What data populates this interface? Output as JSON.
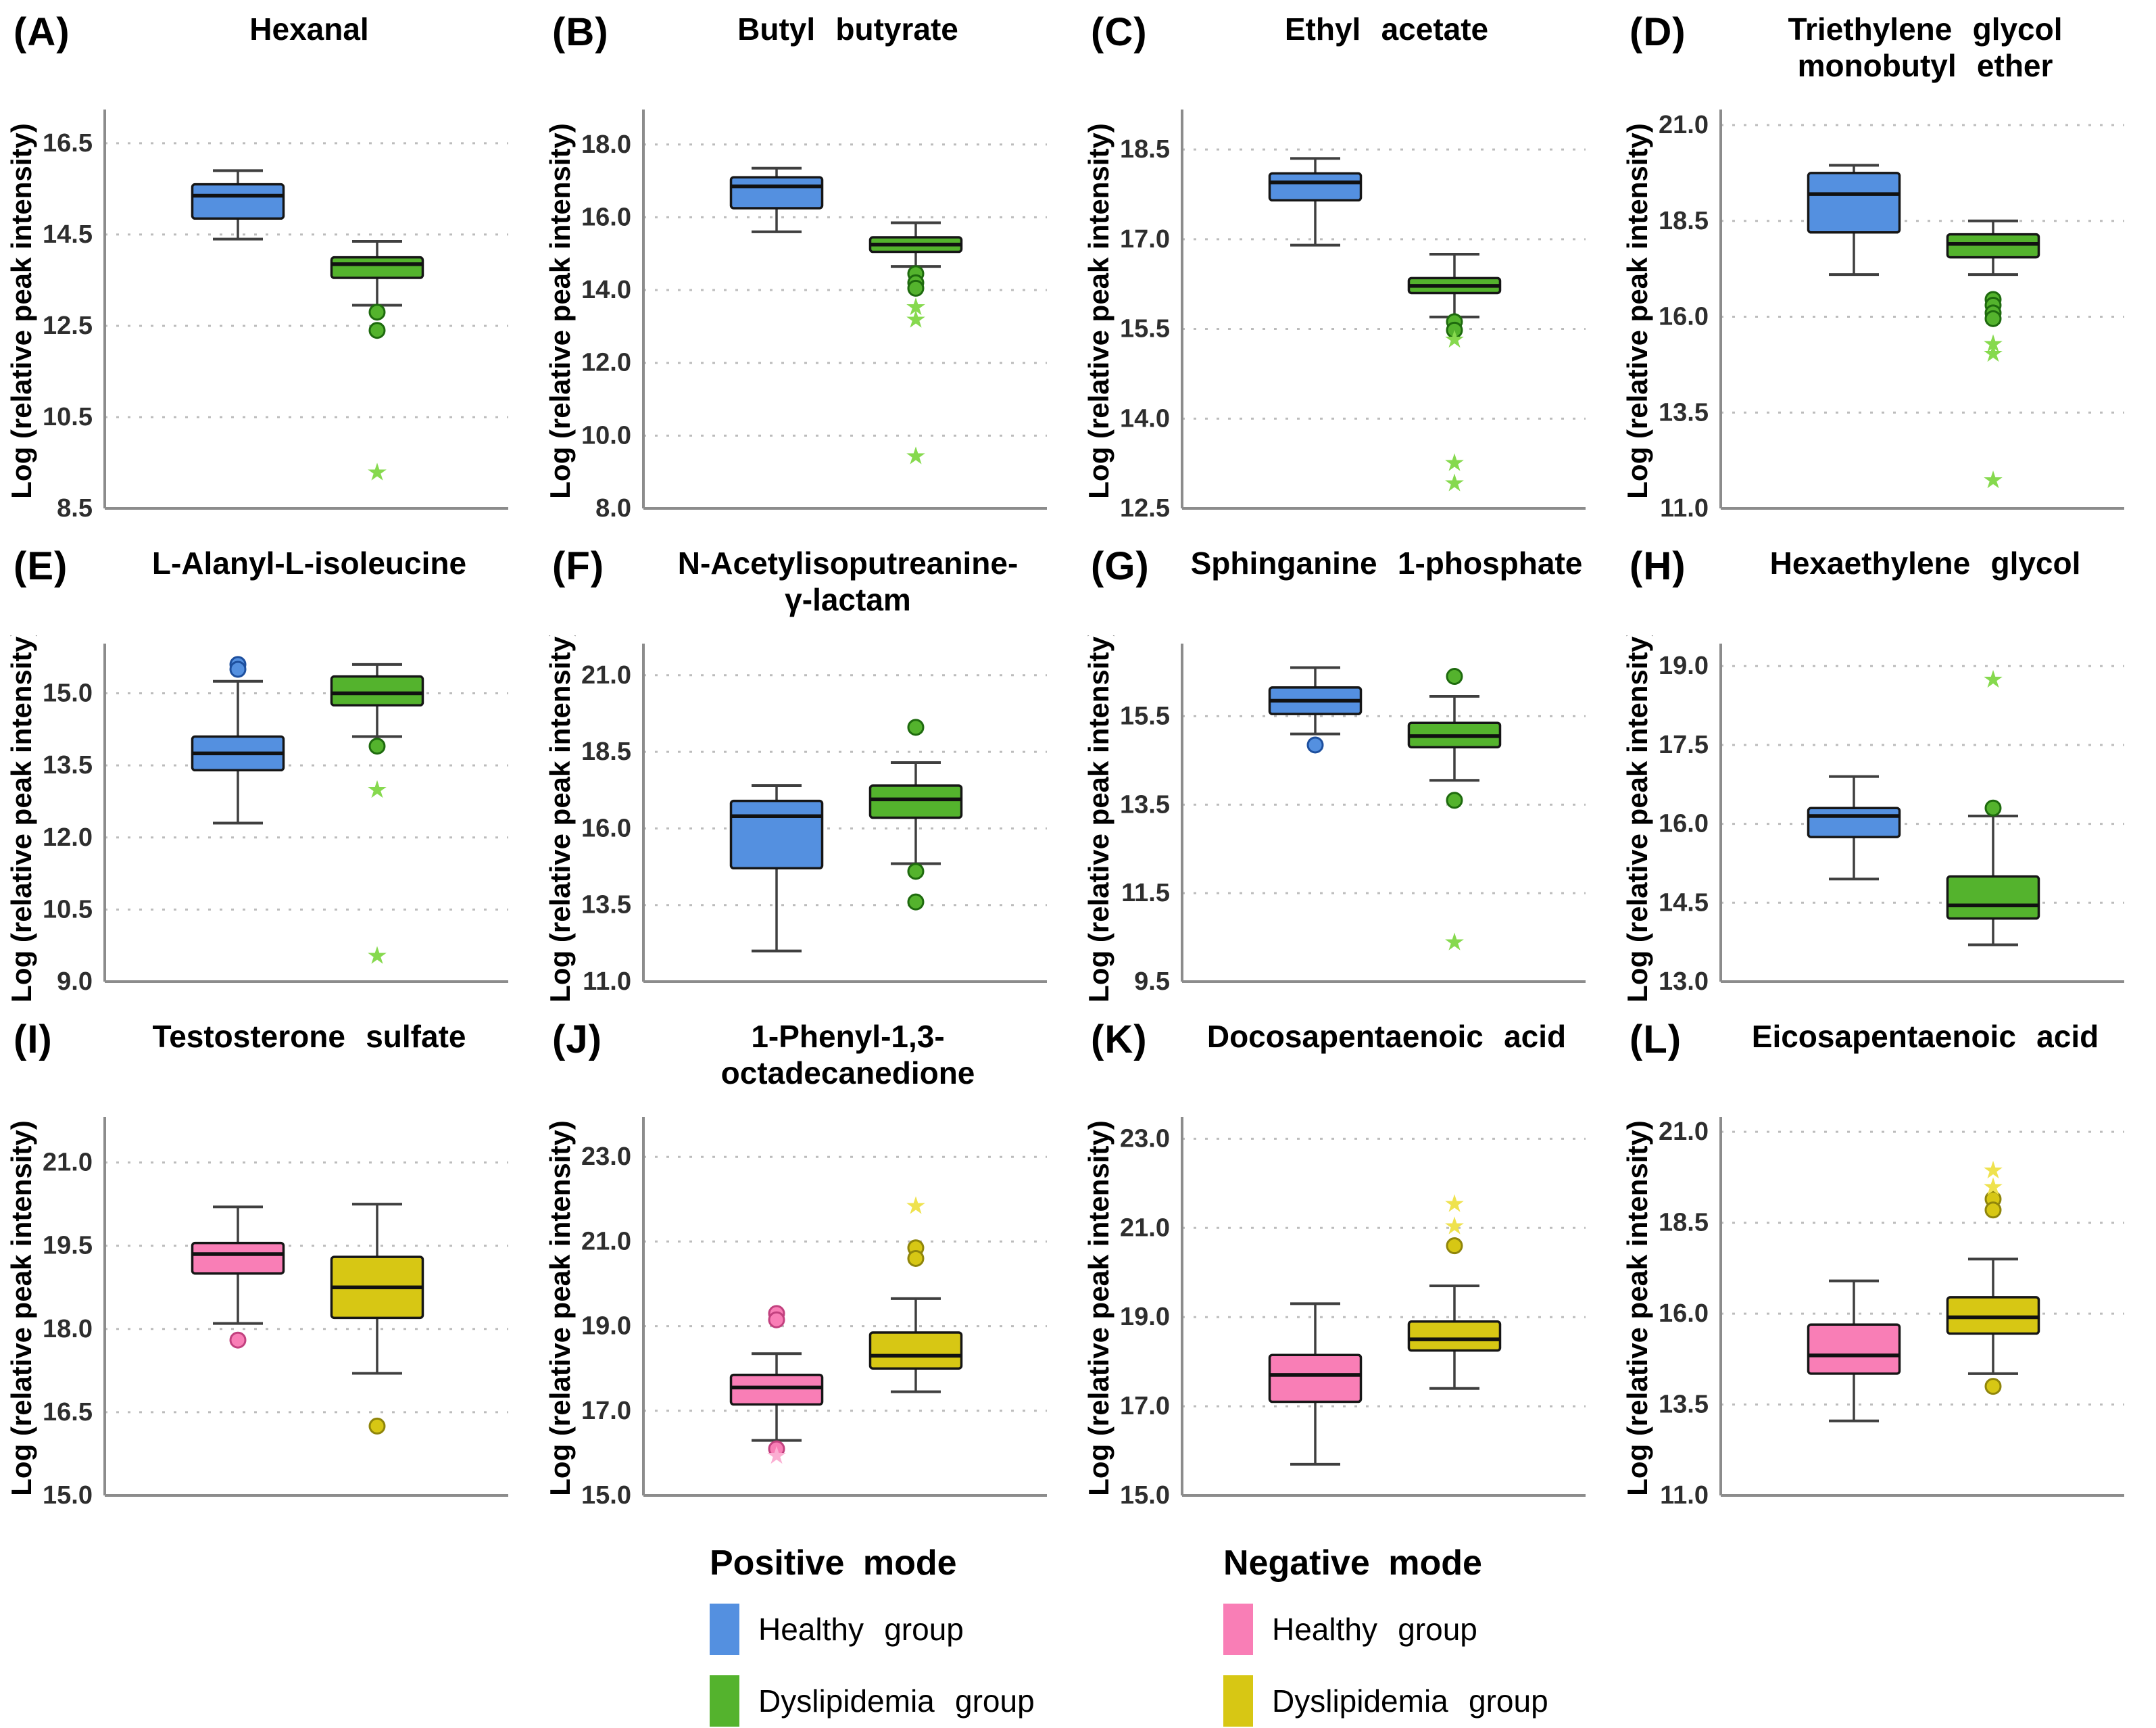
{
  "figure": {
    "ylabel": "Log (relative peak intensity)"
  },
  "legend": {
    "sections": [
      {
        "title": "Positive mode",
        "items": [
          {
            "label": "Healthy group",
            "color": "#5490e0"
          },
          {
            "label": "Dyslipidemia group",
            "color": "#54b32d"
          }
        ]
      },
      {
        "title": "Negative mode",
        "items": [
          {
            "label": "Healthy group",
            "color": "#f97eb6"
          },
          {
            "label": "Dyslipidemia group",
            "color": "#d7c714"
          }
        ]
      }
    ]
  },
  "chart_data": [
    {
      "type": "boxplot",
      "panel": "(A)",
      "title_lines": [
        "Hexanal"
      ],
      "ylabel": "Log (relative peak intensity)",
      "yticks": [
        8.5,
        10.5,
        12.5,
        14.5,
        16.5
      ],
      "ylim": [
        8.5,
        17.15
      ],
      "groups": [
        {
          "name": "Healthy group",
          "fill": "#5490e0",
          "edge": "#1d4f9e",
          "star": "#7fd74f",
          "box": {
            "low": 14.4,
            "q1": 14.85,
            "median": 15.35,
            "q3": 15.6,
            "high": 15.9
          },
          "circles": [],
          "stars": []
        },
        {
          "name": "Dyslipidemia group",
          "fill": "#54b32d",
          "edge": "#1e6a0e",
          "star": "#86d94e",
          "box": {
            "low": 12.95,
            "q1": 13.55,
            "median": 13.85,
            "q3": 14.0,
            "high": 14.35
          },
          "circles": [
            12.8,
            12.4
          ],
          "stars": [
            9.3
          ]
        }
      ]
    },
    {
      "type": "boxplot",
      "panel": "(B)",
      "title_lines": [
        "Butyl butyrate"
      ],
      "ylabel": "Log (relative peak intensity)",
      "yticks": [
        8.0,
        10.0,
        12.0,
        14.0,
        16.0,
        18.0
      ],
      "ylim": [
        8.0,
        18.85
      ],
      "groups": [
        {
          "name": "Healthy group",
          "fill": "#5490e0",
          "edge": "#1d4f9e",
          "star": "#7fd74f",
          "box": {
            "low": 15.6,
            "q1": 16.25,
            "median": 16.85,
            "q3": 17.1,
            "high": 17.35
          },
          "circles": [],
          "stars": []
        },
        {
          "name": "Dyslipidemia group",
          "fill": "#54b32d",
          "edge": "#1e6a0e",
          "star": "#86d94e",
          "box": {
            "low": 14.65,
            "q1": 15.05,
            "median": 15.25,
            "q3": 15.45,
            "high": 15.85
          },
          "circles": [
            14.45,
            14.2,
            14.05
          ],
          "stars": [
            13.55,
            13.2,
            9.45
          ]
        }
      ]
    },
    {
      "type": "boxplot",
      "panel": "(C)",
      "title_lines": [
        "Ethyl acetate"
      ],
      "ylabel": "Log (relative peak intensity)",
      "yticks": [
        12.5,
        14.0,
        15.5,
        17.0,
        18.5
      ],
      "ylim": [
        12.5,
        19.1
      ],
      "groups": [
        {
          "name": "Healthy group",
          "fill": "#5490e0",
          "edge": "#1d4f9e",
          "star": "#7fd74f",
          "box": {
            "low": 16.9,
            "q1": 17.65,
            "median": 17.95,
            "q3": 18.1,
            "high": 18.35
          },
          "circles": [],
          "stars": []
        },
        {
          "name": "Dyslipidemia group",
          "fill": "#54b32d",
          "edge": "#1e6a0e",
          "star": "#86d94e",
          "box": {
            "low": 15.7,
            "q1": 16.1,
            "median": 16.22,
            "q3": 16.35,
            "high": 16.75
          },
          "circles": [
            15.62,
            15.48
          ],
          "stars": [
            15.33,
            13.27,
            12.93
          ]
        }
      ]
    },
    {
      "type": "boxplot",
      "panel": "(D)",
      "title_lines": [
        "Triethylene glycol",
        "monobutyl ether"
      ],
      "ylabel": "Log (relative peak intensity)",
      "yticks": [
        11.0,
        13.5,
        16.0,
        18.5,
        21.0
      ],
      "ylim": [
        11.0,
        21.3
      ],
      "groups": [
        {
          "name": "Healthy group",
          "fill": "#5490e0",
          "edge": "#1d4f9e",
          "star": "#7fd74f",
          "box": {
            "low": 17.1,
            "q1": 18.2,
            "median": 19.2,
            "q3": 19.75,
            "high": 19.95
          },
          "circles": [],
          "stars": []
        },
        {
          "name": "Dyslipidemia group",
          "fill": "#54b32d",
          "edge": "#1e6a0e",
          "star": "#86d94e",
          "box": {
            "low": 17.1,
            "q1": 17.55,
            "median": 17.9,
            "q3": 18.15,
            "high": 18.5
          },
          "circles": [
            16.45,
            16.3,
            16.1,
            15.95
          ],
          "stars": [
            15.3,
            15.05,
            11.75
          ]
        }
      ]
    },
    {
      "type": "boxplot",
      "panel": "(E)",
      "title_lines": [
        "L-Alanyl-L-isoleucine"
      ],
      "ylabel": "Log (relative peak intensity)",
      "yticks": [
        9.0,
        10.5,
        12.0,
        13.5,
        15.0
      ],
      "ylim": [
        9.0,
        15.95
      ],
      "groups": [
        {
          "name": "Healthy group",
          "fill": "#5490e0",
          "edge": "#1d4f9e",
          "star": "#7fd74f",
          "box": {
            "low": 12.3,
            "q1": 13.4,
            "median": 13.75,
            "q3": 14.1,
            "high": 15.25
          },
          "circles": [
            15.6,
            15.5
          ],
          "stars": []
        },
        {
          "name": "Dyslipidemia group",
          "fill": "#54b32d",
          "edge": "#1e6a0e",
          "star": "#86d94e",
          "box": {
            "low": 14.1,
            "q1": 14.75,
            "median": 15.0,
            "q3": 15.35,
            "high": 15.6
          },
          "circles": [
            13.9
          ],
          "stars": [
            13.0,
            9.55
          ]
        }
      ]
    },
    {
      "type": "boxplot",
      "panel": "(F)",
      "title_lines": [
        "N-Acetylisoputreanine-",
        "γ-lactam"
      ],
      "ylabel": "Log (relative peak intensity)",
      "yticks": [
        11.0,
        13.5,
        16.0,
        18.5,
        21.0
      ],
      "ylim": [
        11.0,
        21.9
      ],
      "groups": [
        {
          "name": "Healthy group",
          "fill": "#5490e0",
          "edge": "#1d4f9e",
          "star": "#7fd74f",
          "box": {
            "low": 12.0,
            "q1": 14.7,
            "median": 16.4,
            "q3": 16.9,
            "high": 17.4
          },
          "circles": [],
          "stars": []
        },
        {
          "name": "Dyslipidemia group",
          "fill": "#54b32d",
          "edge": "#1e6a0e",
          "star": "#86d94e",
          "box": {
            "low": 14.85,
            "q1": 16.35,
            "median": 16.95,
            "q3": 17.4,
            "high": 18.15
          },
          "circles": [
            19.3,
            14.6,
            13.6
          ],
          "stars": []
        }
      ]
    },
    {
      "type": "boxplot",
      "panel": "(G)",
      "title_lines": [
        "Sphinganine 1-phosphate"
      ],
      "ylabel": "Log (relative peak intensity)",
      "yticks": [
        9.5,
        11.5,
        13.5,
        15.5
      ],
      "ylim": [
        9.5,
        17.05
      ],
      "groups": [
        {
          "name": "Healthy group",
          "fill": "#5490e0",
          "edge": "#1d4f9e",
          "star": "#7fd74f",
          "box": {
            "low": 15.1,
            "q1": 15.55,
            "median": 15.85,
            "q3": 16.15,
            "high": 16.6
          },
          "circles": [
            14.85
          ],
          "stars": []
        },
        {
          "name": "Dyslipidemia group",
          "fill": "#54b32d",
          "edge": "#1e6a0e",
          "star": "#86d94e",
          "box": {
            "low": 14.05,
            "q1": 14.8,
            "median": 15.05,
            "q3": 15.35,
            "high": 15.95
          },
          "circles": [
            16.4,
            13.6
          ],
          "stars": [
            10.4
          ]
        }
      ]
    },
    {
      "type": "boxplot",
      "panel": "(H)",
      "title_lines": [
        "Hexaethylene glycol"
      ],
      "ylabel": "Log (relative peak intensity)",
      "yticks": [
        13.0,
        14.5,
        16.0,
        17.5,
        19.0
      ],
      "ylim": [
        13.0,
        19.35
      ],
      "groups": [
        {
          "name": "Healthy group",
          "fill": "#5490e0",
          "edge": "#1d4f9e",
          "star": "#7fd74f",
          "box": {
            "low": 14.95,
            "q1": 15.75,
            "median": 16.15,
            "q3": 16.3,
            "high": 16.9
          },
          "circles": [],
          "stars": []
        },
        {
          "name": "Dyslipidemia group",
          "fill": "#54b32d",
          "edge": "#1e6a0e",
          "star": "#86d94e",
          "box": {
            "low": 13.7,
            "q1": 14.2,
            "median": 14.45,
            "q3": 15.0,
            "high": 16.15
          },
          "circles": [
            16.3
          ],
          "stars": [
            18.75
          ]
        }
      ]
    },
    {
      "type": "boxplot",
      "panel": "(I)",
      "title_lines": [
        "Testosterone sulfate"
      ],
      "ylabel": "Log (relative peak intensity)",
      "yticks": [
        15.0,
        16.5,
        18.0,
        19.5,
        21.0
      ],
      "ylim": [
        15.0,
        21.75
      ],
      "groups": [
        {
          "name": "Healthy group",
          "fill": "#f97eb6",
          "edge": "#c2417f",
          "star": "#fbaed2",
          "box": {
            "low": 18.1,
            "q1": 19.0,
            "median": 19.35,
            "q3": 19.55,
            "high": 20.2
          },
          "circles": [
            17.8
          ],
          "stars": []
        },
        {
          "name": "Dyslipidemia group",
          "fill": "#d7c714",
          "edge": "#8f850b",
          "star": "#efe24e",
          "box": {
            "low": 17.2,
            "q1": 18.2,
            "median": 18.75,
            "q3": 19.3,
            "high": 20.25
          },
          "circles": [
            16.25
          ],
          "stars": []
        }
      ]
    },
    {
      "type": "boxplot",
      "panel": "(J)",
      "title_lines": [
        "1-Phenyl-1,3-",
        "octadecanedione"
      ],
      "ylabel": "Log (relative peak intensity)",
      "yticks": [
        15.0,
        17.0,
        19.0,
        21.0,
        23.0
      ],
      "ylim": [
        15.0,
        23.85
      ],
      "groups": [
        {
          "name": "Healthy group",
          "fill": "#f97eb6",
          "edge": "#c2417f",
          "star": "#fbaed2",
          "box": {
            "low": 16.3,
            "q1": 17.15,
            "median": 17.55,
            "q3": 17.85,
            "high": 18.35
          },
          "circles": [
            19.3,
            19.15,
            16.1
          ],
          "stars": [
            15.95
          ]
        },
        {
          "name": "Dyslipidemia group",
          "fill": "#d7c714",
          "edge": "#8f850b",
          "star": "#efe24e",
          "box": {
            "low": 17.45,
            "q1": 18.0,
            "median": 18.3,
            "q3": 18.85,
            "high": 19.65
          },
          "circles": [
            20.85,
            20.6
          ],
          "stars": [
            21.85
          ]
        }
      ]
    },
    {
      "type": "boxplot",
      "panel": "(K)",
      "title_lines": [
        "Docosapentaenoic acid"
      ],
      "ylabel": "Log (relative peak intensity)",
      "yticks": [
        15.0,
        17.0,
        19.0,
        21.0,
        23.0
      ],
      "ylim": [
        15.0,
        23.4
      ],
      "groups": [
        {
          "name": "Healthy group",
          "fill": "#f97eb6",
          "edge": "#c2417f",
          "star": "#fbaed2",
          "box": {
            "low": 15.7,
            "q1": 17.1,
            "median": 17.7,
            "q3": 18.15,
            "high": 19.3
          },
          "circles": [],
          "stars": []
        },
        {
          "name": "Dyslipidemia group",
          "fill": "#d7c714",
          "edge": "#8f850b",
          "star": "#efe24e",
          "box": {
            "low": 17.4,
            "q1": 18.25,
            "median": 18.5,
            "q3": 18.9,
            "high": 19.7
          },
          "circles": [
            20.6
          ],
          "stars": [
            21.55,
            21.05
          ]
        }
      ]
    },
    {
      "type": "boxplot",
      "panel": "(L)",
      "title_lines": [
        "Eicosapentaenoic acid"
      ],
      "ylabel": "Log (relative peak intensity)",
      "yticks": [
        11.0,
        13.5,
        16.0,
        18.5,
        21.0
      ],
      "ylim": [
        11.0,
        21.3
      ],
      "groups": [
        {
          "name": "Healthy group",
          "fill": "#f97eb6",
          "edge": "#c2417f",
          "star": "#fbaed2",
          "box": {
            "low": 13.05,
            "q1": 14.35,
            "median": 14.85,
            "q3": 15.7,
            "high": 16.9
          },
          "circles": [],
          "stars": []
        },
        {
          "name": "Dyslipidemia group",
          "fill": "#d7c714",
          "edge": "#8f850b",
          "star": "#efe24e",
          "box": {
            "low": 14.35,
            "q1": 15.45,
            "median": 15.9,
            "q3": 16.45,
            "high": 17.5
          },
          "circles": [
            19.15,
            18.85,
            14.0
          ],
          "stars": [
            19.95,
            19.5
          ]
        }
      ]
    }
  ]
}
